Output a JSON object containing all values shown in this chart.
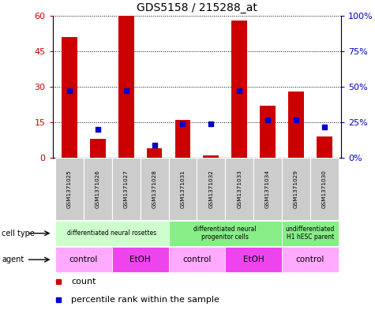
{
  "title": "GDS5158 / 215288_at",
  "samples": [
    "GSM1371025",
    "GSM1371026",
    "GSM1371027",
    "GSM1371028",
    "GSM1371031",
    "GSM1371032",
    "GSM1371033",
    "GSM1371034",
    "GSM1371029",
    "GSM1371030"
  ],
  "counts": [
    51,
    8,
    60,
    4,
    16,
    1,
    58,
    22,
    28,
    9
  ],
  "percentile_ranks": [
    47,
    20,
    47,
    9,
    24,
    24,
    47,
    27,
    27,
    22
  ],
  "ylim_left": [
    0,
    60
  ],
  "ylim_right": [
    0,
    100
  ],
  "yticks_left": [
    0,
    15,
    30,
    45,
    60
  ],
  "yticks_right": [
    0,
    25,
    50,
    75,
    100
  ],
  "ytick_labels_right": [
    "0%",
    "25%",
    "50%",
    "75%",
    "100%"
  ],
  "bar_color": "#cc0000",
  "marker_color": "#0000cc",
  "cell_type_groups": [
    {
      "label": "differentiated neural rosettes",
      "start": 0,
      "end": 3,
      "color": "#ccffcc"
    },
    {
      "label": "differentiated neural\nprogenitor cells",
      "start": 4,
      "end": 7,
      "color": "#88ee88"
    },
    {
      "label": "undifferentiated\nH1 hESC parent",
      "start": 8,
      "end": 9,
      "color": "#88ee88"
    }
  ],
  "agent_groups": [
    {
      "label": "control",
      "start": 0,
      "end": 1,
      "color": "#ffaaff"
    },
    {
      "label": "EtOH",
      "start": 2,
      "end": 3,
      "color": "#ee44ee"
    },
    {
      "label": "control",
      "start": 4,
      "end": 5,
      "color": "#ffaaff"
    },
    {
      "label": "EtOH",
      "start": 6,
      "end": 7,
      "color": "#ee44ee"
    },
    {
      "label": "control",
      "start": 8,
      "end": 9,
      "color": "#ffaaff"
    }
  ],
  "legend_count_color": "#cc0000",
  "legend_pct_color": "#0000cc",
  "bg_color": "#ffffff",
  "sample_bg_color": "#cccccc"
}
